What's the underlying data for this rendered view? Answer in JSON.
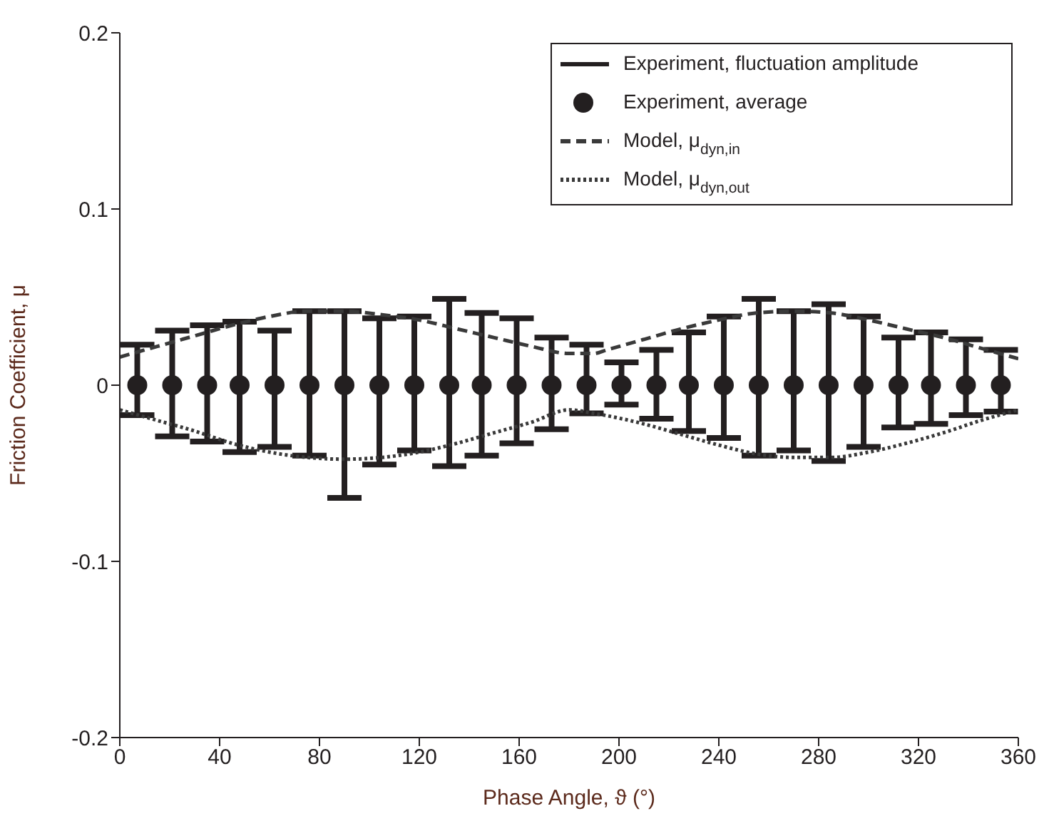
{
  "chart_data": {
    "type": "scatter",
    "xlabel": "Phase Angle, ϑ (°)",
    "ylabel": "Friction Coefficient, μ",
    "xlim": [
      0,
      360
    ],
    "xticks": [
      0,
      40,
      80,
      120,
      160,
      200,
      240,
      280,
      320,
      360
    ],
    "ylim": [
      -0.2,
      0.2
    ],
    "yticks": [
      -0.2,
      -0.1,
      0,
      0.1,
      0.2
    ],
    "legend": "top right",
    "series": [
      {
        "name": "Experiment, fluctuation amplitude",
        "marker": "none",
        "color": "#231f20"
      },
      {
        "name": "Experiment, average",
        "marker": "circle",
        "color": "#231f20",
        "x": [
          7,
          21,
          35,
          48,
          62,
          76,
          90,
          104,
          118,
          132,
          145,
          159,
          173,
          187,
          201,
          215,
          228,
          242,
          256,
          270,
          284,
          298,
          312,
          325,
          339,
          353
        ],
        "values": [
          0,
          0,
          0,
          0,
          0,
          0,
          0,
          0,
          0,
          0,
          0,
          0,
          0,
          0,
          0,
          0,
          0,
          0,
          0,
          0,
          0,
          0,
          0,
          0,
          0,
          0
        ],
        "errors": [
          [
            -0.017,
            0.023
          ],
          [
            -0.029,
            0.031
          ],
          [
            -0.032,
            0.034
          ],
          [
            -0.038,
            0.036
          ],
          [
            -0.035,
            0.031
          ],
          [
            -0.04,
            0.042
          ],
          [
            -0.064,
            0.042
          ],
          [
            -0.045,
            0.038
          ],
          [
            -0.037,
            0.039
          ],
          [
            -0.046,
            0.049
          ],
          [
            -0.04,
            0.041
          ],
          [
            -0.033,
            0.038
          ],
          [
            -0.025,
            0.027
          ],
          [
            -0.016,
            0.023
          ],
          [
            -0.011,
            0.013
          ],
          [
            -0.019,
            0.02
          ],
          [
            -0.026,
            0.03
          ],
          [
            -0.03,
            0.039
          ],
          [
            -0.04,
            0.049
          ],
          [
            -0.037,
            0.042
          ],
          [
            -0.043,
            0.046
          ],
          [
            -0.035,
            0.039
          ],
          [
            -0.024,
            0.027
          ],
          [
            -0.022,
            0.03
          ],
          [
            -0.017,
            0.026
          ],
          [
            -0.015,
            0.02
          ]
        ]
      },
      {
        "name": "Model, μ$_{dyn,in}$",
        "type": "line",
        "line_style": "dashed",
        "color": "#3a3a3a",
        "x": [
          0,
          15,
          30,
          45,
          60,
          75,
          90,
          105,
          120,
          135,
          150,
          165,
          180,
          190,
          195,
          210,
          225,
          240,
          255,
          270,
          285,
          300,
          315,
          330,
          345,
          360
        ],
        "values": [
          0.016,
          0.022,
          0.028,
          0.034,
          0.039,
          0.042,
          0.042,
          0.04,
          0.037,
          0.032,
          0.027,
          0.022,
          0.018,
          0.018,
          0.02,
          0.026,
          0.032,
          0.037,
          0.041,
          0.042,
          0.041,
          0.037,
          0.032,
          0.027,
          0.021,
          0.015
        ]
      },
      {
        "name": "Model, μ$_{dyn,out}$",
        "type": "line",
        "line_style": "dotted",
        "color": "#3a3a3a",
        "x": [
          0,
          15,
          30,
          45,
          60,
          75,
          90,
          105,
          120,
          135,
          150,
          165,
          180,
          190,
          210,
          225,
          240,
          255,
          270,
          285,
          300,
          315,
          330,
          345,
          360
        ],
        "values": [
          -0.014,
          -0.02,
          -0.026,
          -0.033,
          -0.038,
          -0.041,
          -0.042,
          -0.041,
          -0.038,
          -0.033,
          -0.027,
          -0.021,
          -0.014,
          -0.016,
          -0.022,
          -0.028,
          -0.034,
          -0.039,
          -0.041,
          -0.041,
          -0.038,
          -0.033,
          -0.027,
          -0.02,
          -0.014
        ]
      }
    ]
  }
}
